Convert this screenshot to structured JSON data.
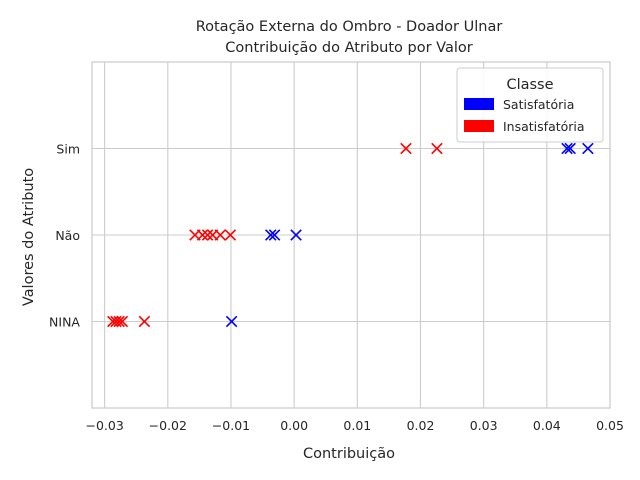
{
  "chart_data": {
    "type": "scatter",
    "title_lines": [
      "Rotação Externa do Ombro - Doador Ulnar",
      "Contribuição do Atributo por Valor"
    ],
    "xlabel": "Contribuição",
    "ylabel": "Valores do Atributo",
    "xlim": [
      -0.032,
      0.05
    ],
    "x_ticks": [
      -0.03,
      -0.02,
      -0.01,
      0.0,
      0.01,
      0.02,
      0.03,
      0.04,
      0.05
    ],
    "x_tick_labels": [
      "−0.03",
      "−0.02",
      "−0.01",
      "0.00",
      "0.01",
      "0.02",
      "0.03",
      "0.04",
      "0.05"
    ],
    "categories": [
      "NINA",
      "Não",
      "Sim"
    ],
    "ylim": [
      -1,
      3
    ],
    "grid": true,
    "marker": "x",
    "legend": {
      "title": "Classe",
      "position": "top-right"
    },
    "series": [
      {
        "name": "Satisfatória",
        "color": "#0000ff",
        "points": [
          {
            "x": 0.0432,
            "y": "Sim"
          },
          {
            "x": 0.0437,
            "y": "Sim"
          },
          {
            "x": 0.0465,
            "y": "Sim"
          },
          {
            "x": -0.0037,
            "y": "Não"
          },
          {
            "x": -0.0031,
            "y": "Não"
          },
          {
            "x": 0.0003,
            "y": "Não"
          },
          {
            "x": -0.0099,
            "y": "NINA"
          }
        ]
      },
      {
        "name": "Insatisfatória",
        "color": "#ff0000",
        "points": [
          {
            "x": 0.0177,
            "y": "Sim"
          },
          {
            "x": 0.0226,
            "y": "Sim"
          },
          {
            "x": -0.0157,
            "y": "Não"
          },
          {
            "x": -0.0145,
            "y": "Não"
          },
          {
            "x": -0.0137,
            "y": "Não"
          },
          {
            "x": -0.0129,
            "y": "Não"
          },
          {
            "x": -0.0117,
            "y": "Não"
          },
          {
            "x": -0.0101,
            "y": "Não"
          },
          {
            "x": -0.0287,
            "y": "NINA"
          },
          {
            "x": -0.0282,
            "y": "NINA"
          },
          {
            "x": -0.0277,
            "y": "NINA"
          },
          {
            "x": -0.0272,
            "y": "NINA"
          },
          {
            "x": -0.0237,
            "y": "NINA"
          }
        ]
      }
    ]
  }
}
